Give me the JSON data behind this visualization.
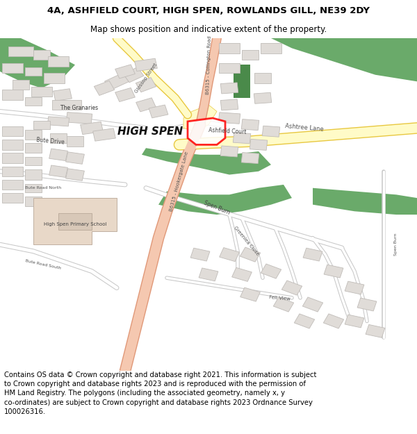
{
  "title_line1": "4A, ASHFIELD COURT, HIGH SPEN, ROWLANDS GILL, NE39 2DY",
  "title_line2": "Map shows position and indicative extent of the property.",
  "footer_text": "Contains OS data © Crown copyright and database right 2021. This information is subject to Crown copyright and database rights 2023 and is reproduced with the permission of HM Land Registry. The polygons (including the associated geometry, namely x, y co-ordinates) are subject to Crown copyright and database rights 2023 Ordnance Survey 100026316.",
  "title_fontsize": 9.5,
  "subtitle_fontsize": 8.5,
  "footer_fontsize": 7.2,
  "title_color": "#000000",
  "footer_color": "#000000",
  "bg_color": "#ffffff",
  "map_bg": "#ffffff",
  "road_yellow_fill": "#fffbc8",
  "road_yellow_edge": "#e8c840",
  "road_salmon_fill": "#f5c8b0",
  "road_salmon_edge": "#e09878",
  "road_minor_fill": "#ffffff",
  "road_minor_edge": "#c8c8c8",
  "green_color": "#6aaa6a",
  "green_dark": "#4a8a4a",
  "building_color": "#e0dcd8",
  "building_outline": "#c0bcb8",
  "school_color": "#e8d8c8",
  "school_outline": "#c0b0a0",
  "plot_outline_color": "#ff0000",
  "plot_fill_color": "#ffffff",
  "figsize": [
    6.0,
    6.25
  ],
  "dpi": 100
}
